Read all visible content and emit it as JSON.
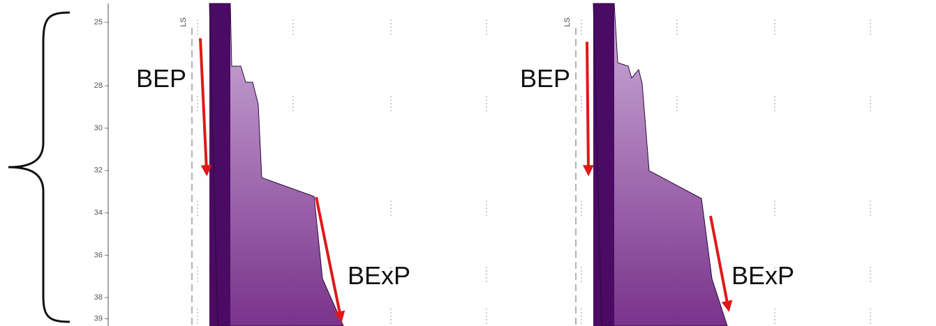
{
  "axis": {
    "ticks": [
      25,
      28,
      30,
      32,
      34,
      36,
      38,
      39
    ]
  },
  "panels": [
    {
      "marker": "LS",
      "upper_label": "BEP",
      "lower_label": "BExP"
    },
    {
      "marker": "LS",
      "upper_label": "BEP",
      "lower_label": "BExP"
    }
  ]
}
